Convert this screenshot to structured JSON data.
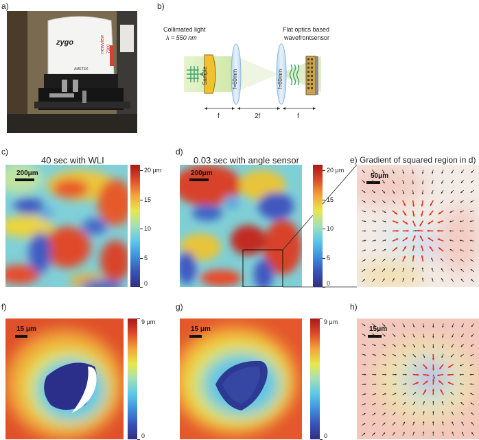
{
  "panels": {
    "a": "a)",
    "b": "b)",
    "c": "c)",
    "d": "d)",
    "e": "e)",
    "f": "f)",
    "g": "g)",
    "h": "h)"
  },
  "photo": {
    "brand": "zygo",
    "model": "newview",
    "model_sub": "7300",
    "badge": "AMETEK"
  },
  "setup": {
    "light_line1": "Collimated light",
    "light_line2": "λ = 550 nm",
    "sample": "Sample",
    "lens1": "f=60mm",
    "lens2": "f=60mm",
    "sensor_line1": "Flat optics based",
    "sensor_line2": "wavefrontsensor",
    "dist_f1": "f",
    "dist_2f": "2f",
    "dist_f2": "f"
  },
  "captions": {
    "c": "40 sec with WLI",
    "d": "0.03 sec with angle sensor",
    "e": "Gradient of squared region in d)"
  },
  "scalebars": {
    "c": "200μm",
    "d": "200μm",
    "e": "50μm",
    "f": "15 μm",
    "g": "15 μm",
    "h": "15μm"
  },
  "colorbar_top": {
    "ticks": [
      "20 μm",
      "15",
      "10",
      "5",
      "0"
    ],
    "values": [
      20,
      15,
      10,
      5,
      0
    ],
    "max": 21
  },
  "colorbar_bottom": {
    "ticks": [
      "9 μm",
      "0"
    ],
    "values": [
      9,
      0
    ],
    "max": 9
  },
  "colormap": [
    "#30307f",
    "#3a52b8",
    "#3f8fdc",
    "#5bc8e8",
    "#a4e0b8",
    "#e8e84a",
    "#f2a43a",
    "#e04a2a",
    "#a81818"
  ]
}
